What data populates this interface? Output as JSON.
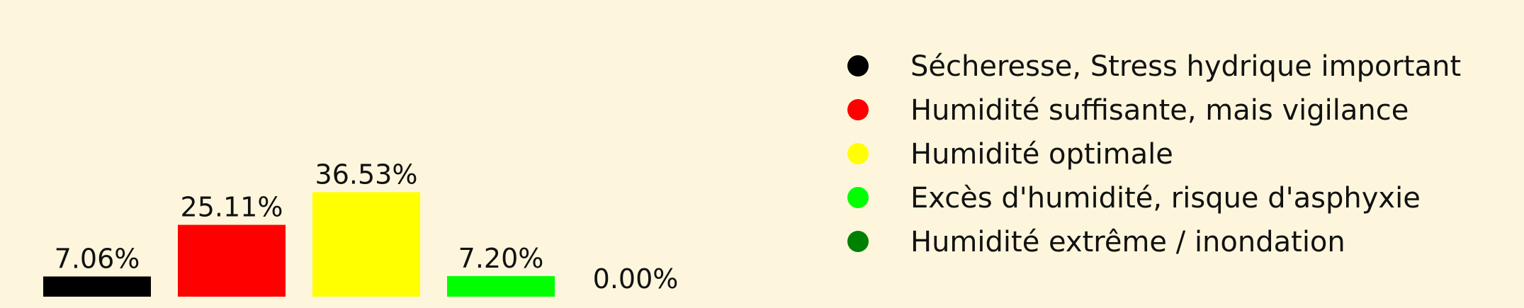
{
  "chart_data": {
    "type": "bar",
    "categories": [
      "Sécheresse, Stress hydrique important",
      "Humidité suffisante, mais vigilance",
      "Humidité optimale",
      "Excès d'humidité, risque d'asphyxie",
      "Humidité extrême / inondation"
    ],
    "values": [
      7.06,
      25.11,
      36.53,
      7.2,
      0.0
    ],
    "value_labels": [
      "7.06%",
      "25.11%",
      "36.53%",
      "7.20%",
      "0.00%"
    ],
    "colors": [
      "#000000",
      "#ff0000",
      "#ffff00",
      "#00ff00",
      "#008000"
    ],
    "title": "",
    "xlabel": "",
    "ylabel": "",
    "grid": false,
    "legend_position": "right",
    "legend": [
      {
        "label": "Sécheresse, Stress hydrique important",
        "color": "#000000"
      },
      {
        "label": "Humidité suffisante, mais vigilance",
        "color": "#ff0000"
      },
      {
        "label": "Humidité optimale",
        "color": "#ffff00"
      },
      {
        "label": "Excès d'humidité, risque d'asphyxie",
        "color": "#00ff00"
      },
      {
        "label": "Humidité extrême / inondation",
        "color": "#008000"
      }
    ]
  },
  "background_color": "#fdf6dc"
}
